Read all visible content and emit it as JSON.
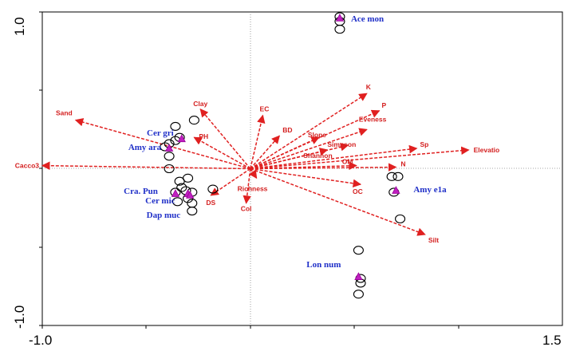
{
  "chart_data": {
    "type": "scatter",
    "title": "",
    "xlabel": "",
    "ylabel": "",
    "xlim": [
      -1.0,
      1.5
    ],
    "ylim": [
      -1.0,
      1.0
    ],
    "grid": false,
    "x_tick_labels": [
      "-1.0",
      "1.5"
    ],
    "y_tick_labels": [
      "1.0",
      "-1.0"
    ],
    "colors": {
      "env_arrows": "#e02020",
      "species_labels": "#2030c8",
      "species_markers": "#c020c0",
      "site_markers": "#000000"
    },
    "env_variables": [
      {
        "name": "Sand",
        "x": -0.84,
        "y": 0.31
      },
      {
        "name": "Clay",
        "x": -0.24,
        "y": 0.38
      },
      {
        "name": "PH",
        "x": -0.27,
        "y": 0.2
      },
      {
        "name": "EC",
        "x": 0.06,
        "y": 0.34
      },
      {
        "name": "BD",
        "x": 0.14,
        "y": 0.21
      },
      {
        "name": "K",
        "x": 0.56,
        "y": 0.48
      },
      {
        "name": "P",
        "x": 0.62,
        "y": 0.37
      },
      {
        "name": "Eveness",
        "x": 0.56,
        "y": 0.25
      },
      {
        "name": "Slope",
        "x": 0.33,
        "y": 0.2
      },
      {
        "name": "Simpson",
        "x": 0.47,
        "y": 0.15
      },
      {
        "name": "Shannon",
        "x": 0.37,
        "y": 0.12
      },
      {
        "name": "Sp",
        "x": 0.8,
        "y": 0.13
      },
      {
        "name": "Elevatio",
        "x": 1.05,
        "y": 0.12
      },
      {
        "name": "Cacco3",
        "x": -1.0,
        "y": 0.02
      },
      {
        "name": "OM",
        "x": 0.51,
        "y": 0.02
      },
      {
        "name": "N",
        "x": 0.7,
        "y": 0.01
      },
      {
        "name": "OC",
        "x": 0.53,
        "y": -0.1
      },
      {
        "name": "Richness",
        "x": 0.03,
        "y": -0.06
      },
      {
        "name": "DS",
        "x": -0.19,
        "y": -0.17
      },
      {
        "name": "Col",
        "x": -0.02,
        "y": -0.22
      },
      {
        "name": "Silt",
        "x": 0.84,
        "y": -0.42
      }
    ],
    "species": [
      {
        "name": "Ace mon",
        "x": 0.43,
        "y": 0.96
      },
      {
        "name": "Cer gri",
        "x": -0.33,
        "y": 0.19
      },
      {
        "name": "Amy ara",
        "x": -0.39,
        "y": 0.13
      },
      {
        "name": "Cra. Pun",
        "x": -0.36,
        "y": -0.16
      },
      {
        "name": "Cer mic",
        "x": -0.3,
        "y": -0.16
      },
      {
        "name": "Dap muc",
        "x": -0.29,
        "y": -0.17
      },
      {
        "name": "Amy e1a",
        "x": 0.7,
        "y": -0.14
      },
      {
        "name": "Lon num",
        "x": 0.52,
        "y": -0.69
      }
    ],
    "sites": [
      {
        "x": 0.43,
        "y": 0.97
      },
      {
        "x": 0.43,
        "y": 0.94
      },
      {
        "x": 0.43,
        "y": 0.89
      },
      {
        "x": -0.36,
        "y": 0.27
      },
      {
        "x": -0.27,
        "y": 0.31
      },
      {
        "x": -0.34,
        "y": 0.2
      },
      {
        "x": -0.36,
        "y": 0.18
      },
      {
        "x": -0.39,
        "y": 0.16
      },
      {
        "x": -0.41,
        "y": 0.14
      },
      {
        "x": -0.39,
        "y": 0.08
      },
      {
        "x": -0.39,
        "y": 0.0
      },
      {
        "x": -0.3,
        "y": -0.06
      },
      {
        "x": -0.34,
        "y": -0.08
      },
      {
        "x": -0.33,
        "y": -0.12
      },
      {
        "x": -0.36,
        "y": -0.15
      },
      {
        "x": -0.31,
        "y": -0.14
      },
      {
        "x": -0.28,
        "y": -0.15
      },
      {
        "x": -0.3,
        "y": -0.19
      },
      {
        "x": -0.35,
        "y": -0.21
      },
      {
        "x": -0.28,
        "y": -0.22
      },
      {
        "x": -0.28,
        "y": -0.27
      },
      {
        "x": -0.18,
        "y": -0.13
      },
      {
        "x": 0.68,
        "y": -0.05
      },
      {
        "x": 0.71,
        "y": -0.05
      },
      {
        "x": 0.69,
        "y": -0.15
      },
      {
        "x": 0.72,
        "y": -0.32
      },
      {
        "x": 0.52,
        "y": -0.52
      },
      {
        "x": 0.53,
        "y": -0.7
      },
      {
        "x": 0.53,
        "y": -0.73
      },
      {
        "x": 0.52,
        "y": -0.8
      }
    ]
  }
}
